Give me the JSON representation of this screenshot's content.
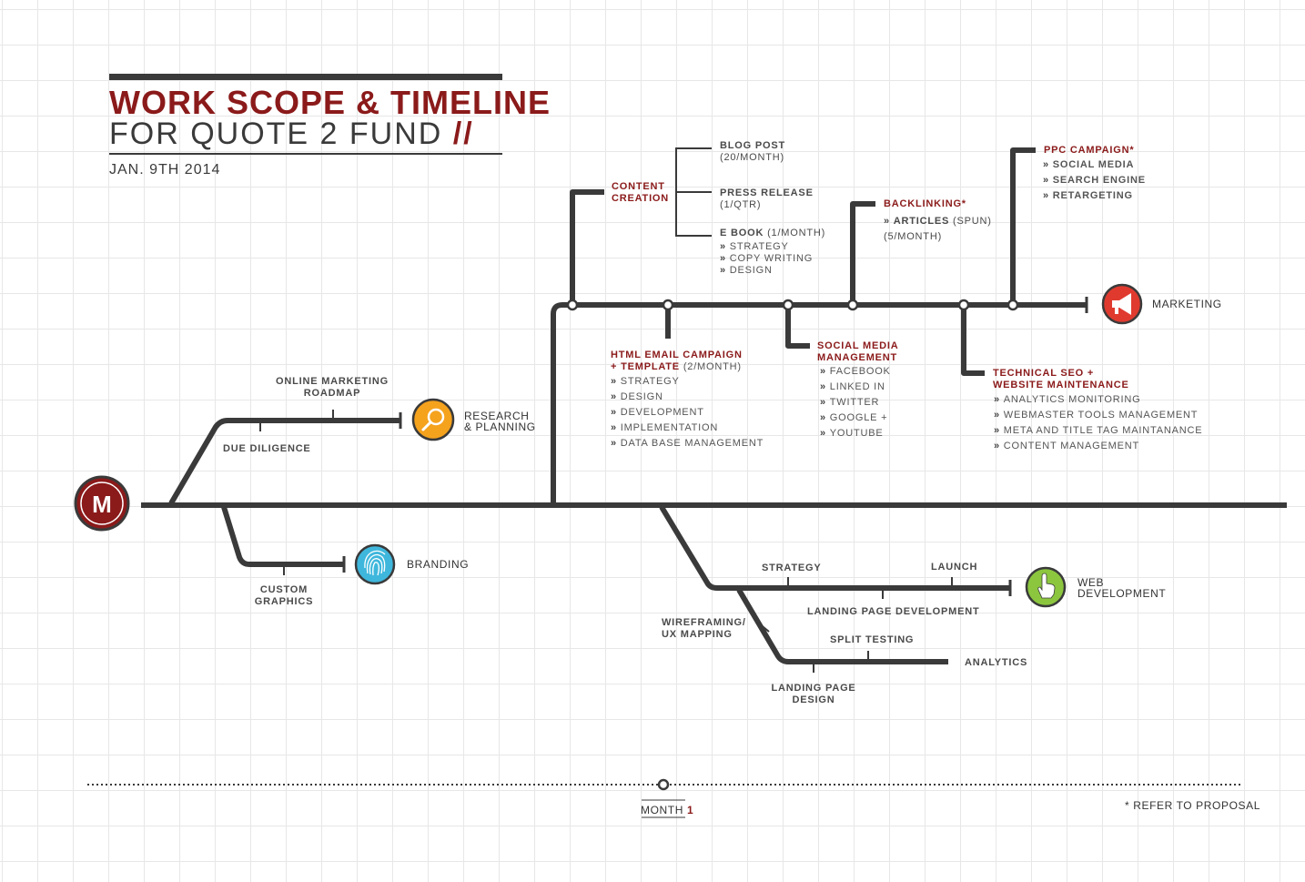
{
  "header": {
    "title_line1": "WORK SCOPE & TIMELINE",
    "title_line2": "FOR QUOTE 2 FUND",
    "title_slash": "//",
    "date": "JAN. 9TH 2014"
  },
  "logo": {
    "letter": "M"
  },
  "branches": {
    "research": {
      "label_line1": "RESEARCH",
      "label_line2": "& PLANNING",
      "online_marketing_1": "ONLINE MARKETING",
      "online_marketing_2": "ROADMAP",
      "due_diligence": "DUE DILIGENCE"
    },
    "branding": {
      "label": "BRANDING",
      "custom_1": "CUSTOM",
      "custom_2": "GRAPHICS"
    },
    "marketing": {
      "label": "MARKETING",
      "content_creation_1": "CONTENT",
      "content_creation_2": "CREATION",
      "blog_post": "BLOG POST",
      "blog_post_freq": "(20/MONTH)",
      "press_release": "PRESS RELEASE",
      "press_release_freq": "(1/QTR)",
      "ebook": "E BOOK",
      "ebook_freq": "(1/MONTH)",
      "ebook_items": [
        "STRATEGY",
        "COPY WRITING",
        "DESIGN"
      ],
      "html_email_1": "HTML EMAIL CAMPAIGN",
      "html_email_2": "+ TEMPLATE",
      "html_email_freq": "(2/MONTH)",
      "html_email_items": [
        "STRATEGY",
        "DESIGN",
        "DEVELOPMENT",
        "IMPLEMENTATION",
        "DATA BASE MANAGEMENT"
      ],
      "social_1": "SOCIAL MEDIA",
      "social_2": "MANAGEMENT",
      "social_items": [
        "FACEBOOK",
        "LINKED IN",
        "TWITTER",
        "GOOGLE +",
        "YOUTUBE"
      ],
      "backlinking": "BACKLINKING*",
      "articles": "ARTICLES",
      "articles_spun": "(SPUN)",
      "articles_freq": "(5/MONTH)",
      "tech_seo_1": "TECHNICAL SEO +",
      "tech_seo_2": "WEBSITE MAINTENANCE",
      "tech_seo_items": [
        "ANALYTICS MONITORING",
        "WEBMASTER TOOLS MANAGEMENT",
        "META AND TITLE TAG MAINTANANCE",
        "CONTENT MANAGEMENT"
      ],
      "ppc": "PPC CAMPAIGN*",
      "ppc_items": [
        "SOCIAL MEDIA",
        "SEARCH ENGINE",
        "RETARGETING"
      ]
    },
    "webdev": {
      "label_line1": "WEB",
      "label_line2": "DEVELOPMENT",
      "strategy": "STRATEGY",
      "launch": "LAUNCH",
      "landing_dev": "LANDING PAGE DEVELOPMENT",
      "wireframing_1": "WIREFRAMING/",
      "wireframing_2": "UX MAPPING",
      "split_testing": "SPLIT TESTING",
      "analytics": "ANALYTICS",
      "landing_design_1": "LANDING PAGE",
      "landing_design_2": "DESIGN"
    }
  },
  "footer": {
    "month_label": "MONTH",
    "month_number": "1",
    "note": "* REFER TO PROPOSAL"
  },
  "colors": {
    "dark": "#3a3a3a",
    "red": "#8b1a1a",
    "orange": "#f5a21d",
    "blue": "#3fb7dc",
    "green": "#8cc63f",
    "marketing_red": "#e03a2f"
  }
}
